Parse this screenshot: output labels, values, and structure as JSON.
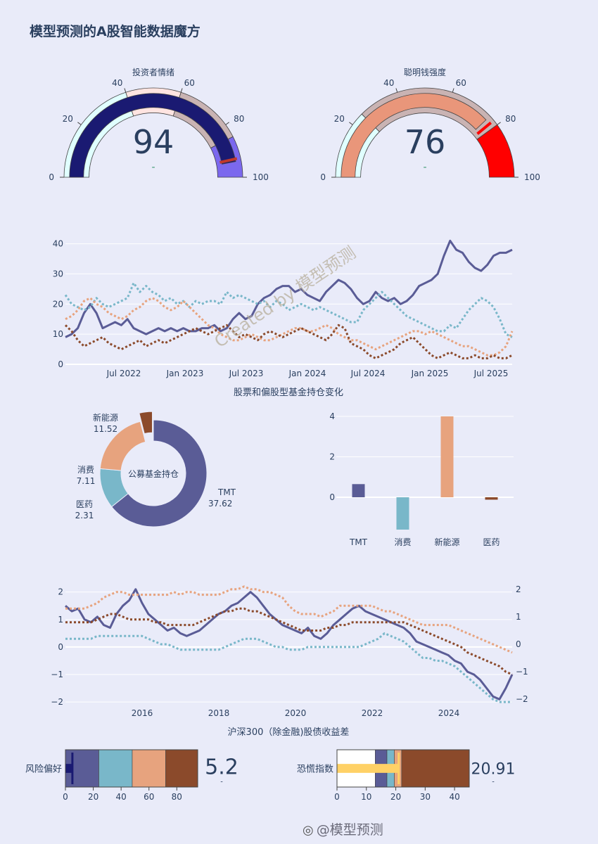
{
  "page": {
    "title": "模型预测的A股智能数据魔方",
    "watermark_handle": "@模型预测",
    "overlay_text": "Created by 模型预测"
  },
  "colors": {
    "navy": "#1a1a72",
    "purple": "#7b68ee",
    "pink": "#ffe4e1",
    "rosybrown": "#c9b3b3",
    "salmon": "#e9967a",
    "lightcyan": "#e0ffff",
    "red": "#ff0000",
    "series_purple": "#5a5c96",
    "series_cyan": "#79b7c9",
    "series_salmon": "#e7a37e",
    "series_brown": "#8b4a2b",
    "gold": "#ffd166"
  },
  "chart_data": [
    {
      "type": "gauge",
      "title": "投资者情绪",
      "value": 94,
      "delta_text": "-",
      "range": [
        0,
        100
      ],
      "ticks": [
        "0",
        "20",
        "40",
        "60",
        "80",
        "100"
      ],
      "steps": [
        {
          "from": 0,
          "to": 40,
          "color": "#e0ffff"
        },
        {
          "from": 40,
          "to": 60,
          "color": "#ffe4e1"
        },
        {
          "from": 60,
          "to": 85,
          "color": "#c9b3b3"
        },
        {
          "from": 85,
          "to": 100,
          "color": "#7b68ee"
        }
      ],
      "bar_color": "#1a1a72",
      "threshold": 93,
      "threshold_color": "#c0392b"
    },
    {
      "type": "gauge",
      "title": "聪明钱强度",
      "value": 76,
      "delta_text": "-",
      "range": [
        0,
        100
      ],
      "ticks": [
        "0",
        "20",
        "40",
        "60",
        "80",
        "100"
      ],
      "steps": [
        {
          "from": 0,
          "to": 25,
          "color": "#e0ffff"
        },
        {
          "from": 25,
          "to": 80,
          "color": "#c9b3b3"
        },
        {
          "from": 80,
          "to": 100,
          "color": "#ff0000"
        }
      ],
      "bar_color": "#e9967a",
      "threshold": 78,
      "threshold_color": "#ff0000"
    },
    {
      "type": "line",
      "title": "股票和偏股型基金持仓变化",
      "x_tick_labels": [
        "Jul 2022",
        "Jan 2023",
        "Jul 2023",
        "Jan 2024",
        "Jul 2024",
        "Jan 2025",
        "Jul 2025"
      ],
      "ylim": [
        0,
        42
      ],
      "y_ticks": [
        0,
        10,
        20,
        30,
        40
      ],
      "series": [
        {
          "style": "solid",
          "color": "#5a5c96",
          "values": [
            9,
            10,
            12,
            17,
            20,
            17,
            12,
            13,
            14,
            13,
            15,
            12,
            11,
            10,
            11,
            12,
            11,
            12,
            11,
            12,
            11,
            11,
            12,
            12,
            13,
            11,
            12,
            15,
            17,
            15,
            16,
            20,
            22,
            23,
            25,
            26,
            26,
            24,
            25,
            23,
            22,
            21,
            24,
            26,
            28,
            27,
            25,
            22,
            20,
            21,
            24,
            22,
            21,
            22,
            20,
            21,
            23,
            26,
            27,
            28,
            30,
            36,
            41,
            38,
            37,
            34,
            32,
            31,
            33,
            36,
            37,
            37,
            38
          ]
        },
        {
          "style": "dot",
          "color": "#79b7c9",
          "values": [
            23,
            20,
            19,
            18,
            19,
            22,
            20,
            19,
            20,
            21,
            22,
            27,
            24,
            26,
            24,
            23,
            21,
            22,
            20,
            21,
            19,
            21,
            20,
            21,
            21,
            20,
            24,
            22,
            23,
            22,
            21,
            20,
            21,
            19,
            21,
            20,
            18,
            19,
            20,
            19,
            18,
            19,
            18,
            17,
            16,
            15,
            14,
            14,
            18,
            20,
            22,
            24,
            22,
            20,
            18,
            16,
            15,
            14,
            13,
            12,
            11,
            11,
            13,
            12,
            15,
            18,
            20,
            22,
            21,
            19,
            15,
            10,
            9
          ]
        },
        {
          "style": "dot",
          "color": "#e7a37e",
          "values": [
            15,
            16,
            18,
            21,
            22,
            20,
            19,
            17,
            16,
            15,
            16,
            18,
            19,
            21,
            22,
            21,
            19,
            18,
            19,
            21,
            19,
            17,
            15,
            13,
            12,
            10,
            9,
            8,
            8,
            9,
            10,
            9,
            8,
            8,
            9,
            10,
            11,
            12,
            12,
            11,
            11,
            12,
            13,
            12,
            10,
            9,
            8,
            8,
            7,
            6,
            5,
            6,
            7,
            8,
            9,
            10,
            11,
            11,
            10,
            11,
            10,
            9,
            8,
            7,
            6,
            6,
            5,
            4,
            3,
            3,
            4,
            6,
            11
          ]
        },
        {
          "style": "dot",
          "color": "#8b4a2b",
          "values": [
            13,
            11,
            8,
            6,
            7,
            8,
            9,
            7,
            6,
            5,
            6,
            7,
            8,
            6,
            7,
            8,
            7,
            8,
            9,
            10,
            11,
            12,
            11,
            10,
            11,
            12,
            13,
            11,
            9,
            10,
            9,
            8,
            10,
            11,
            10,
            9,
            10,
            11,
            12,
            11,
            10,
            9,
            8,
            10,
            13,
            12,
            7,
            6,
            5,
            3,
            2,
            3,
            4,
            5,
            7,
            8,
            9,
            7,
            5,
            3,
            2,
            3,
            4,
            3,
            2,
            2,
            3,
            2,
            2,
            3,
            2,
            2,
            3
          ]
        }
      ]
    },
    {
      "type": "pie",
      "hole_label": "公募基金持仓",
      "labels": [
        "TMT",
        "消费",
        "新能源",
        "医药"
      ],
      "values": [
        37.62,
        7.11,
        11.52,
        2.31
      ],
      "value_texts": [
        "37.62",
        "7.11",
        "11.52",
        "2.31"
      ],
      "colors": [
        "#5a5c96",
        "#79b7c9",
        "#e7a37e",
        "#8b4a2b"
      ]
    },
    {
      "type": "bar",
      "categories": [
        "TMT",
        "消费",
        "新能源",
        "医药"
      ],
      "values": [
        0.65,
        -1.6,
        4.0,
        -0.12
      ],
      "ylim": [
        -1.6,
        4.2
      ],
      "y_ticks": [
        0,
        2,
        4
      ],
      "colors": [
        "#5a5c96",
        "#79b7c9",
        "#e7a37e",
        "#8b4a2b"
      ]
    },
    {
      "type": "line",
      "title": "沪深300（除金融)股债收益差",
      "x_tick_labels": [
        "2016",
        "2018",
        "2020",
        "2022",
        "2024"
      ],
      "ylim": [
        -2.1,
        2.3
      ],
      "y_ticks_left": [
        "2",
        "1",
        "0",
        "−1",
        "−2"
      ],
      "y_ticks_right": [
        "2",
        "1",
        "0",
        "−1",
        "−2"
      ],
      "series": [
        {
          "style": "solid",
          "color": "#5a5c96",
          "values": [
            1.5,
            1.3,
            1.4,
            1.0,
            0.9,
            1.1,
            0.8,
            0.7,
            1.2,
            1.5,
            1.7,
            2.1,
            1.6,
            1.2,
            1.0,
            0.8,
            0.6,
            0.7,
            0.5,
            0.4,
            0.5,
            0.6,
            0.8,
            1.0,
            1.2,
            1.3,
            1.5,
            1.6,
            1.8,
            2.0,
            1.8,
            1.5,
            1.2,
            1.0,
            0.8,
            0.7,
            0.6,
            0.5,
            0.7,
            0.4,
            0.3,
            0.5,
            0.8,
            1.0,
            1.2,
            1.4,
            1.5,
            1.3,
            1.2,
            1.1,
            1.0,
            0.9,
            0.8,
            0.7,
            0.5,
            0.2,
            0.1,
            0.0,
            -0.1,
            -0.2,
            -0.3,
            -0.5,
            -0.6,
            -0.9,
            -1.0,
            -1.2,
            -1.5,
            -1.8,
            -1.9,
            -1.5,
            -1.0
          ]
        },
        {
          "style": "dot",
          "color": "#e7a37e",
          "values": [
            1.4,
            1.4,
            1.4,
            1.4,
            1.5,
            1.6,
            1.8,
            1.9,
            2.0,
            2.0,
            1.9,
            1.9,
            1.9,
            1.9,
            1.9,
            1.9,
            1.9,
            2.0,
            1.9,
            2.0,
            2.0,
            1.9,
            1.9,
            1.9,
            1.9,
            2.0,
            2.1,
            2.1,
            2.2,
            2.1,
            2.1,
            2.0,
            2.0,
            1.9,
            1.8,
            1.5,
            1.3,
            1.2,
            1.2,
            1.2,
            1.1,
            1.2,
            1.3,
            1.5,
            1.5,
            1.5,
            1.5,
            1.5,
            1.5,
            1.4,
            1.3,
            1.3,
            1.2,
            1.1,
            1.0,
            0.9,
            0.8,
            0.8,
            0.8,
            0.8,
            0.8,
            0.7,
            0.6,
            0.5,
            0.4,
            0.3,
            0.2,
            0.1,
            0.0,
            -0.1,
            -0.2
          ]
        },
        {
          "style": "dot",
          "color": "#8b4a2b",
          "values": [
            0.9,
            0.9,
            0.9,
            0.9,
            0.9,
            1.0,
            1.1,
            1.2,
            1.2,
            1.1,
            1.0,
            1.0,
            1.0,
            1.0,
            0.9,
            0.9,
            0.8,
            0.8,
            0.8,
            0.8,
            0.8,
            0.9,
            1.0,
            1.1,
            1.2,
            1.3,
            1.3,
            1.4,
            1.4,
            1.3,
            1.3,
            1.2,
            1.1,
            1.0,
            0.9,
            0.8,
            0.7,
            0.6,
            0.6,
            0.6,
            0.6,
            0.7,
            0.7,
            0.8,
            0.8,
            0.9,
            0.9,
            0.9,
            0.9,
            0.9,
            0.9,
            0.9,
            0.9,
            0.9,
            0.8,
            0.7,
            0.6,
            0.5,
            0.4,
            0.3,
            0.2,
            0.1,
            0.0,
            -0.2,
            -0.3,
            -0.4,
            -0.5,
            -0.6,
            -0.7,
            -0.9,
            -1.0
          ]
        },
        {
          "style": "dot",
          "color": "#79b7c9",
          "values": [
            0.3,
            0.3,
            0.3,
            0.3,
            0.3,
            0.4,
            0.4,
            0.4,
            0.4,
            0.4,
            0.4,
            0.4,
            0.4,
            0.3,
            0.2,
            0.1,
            0.1,
            0.0,
            -0.1,
            -0.1,
            -0.1,
            -0.1,
            -0.1,
            -0.1,
            -0.1,
            0.0,
            0.1,
            0.2,
            0.3,
            0.3,
            0.3,
            0.2,
            0.1,
            0.0,
            0.0,
            -0.1,
            -0.1,
            -0.1,
            0.0,
            0.0,
            0.0,
            0.0,
            0.0,
            0.0,
            0.0,
            0.0,
            0.0,
            0.1,
            0.2,
            0.3,
            0.5,
            0.4,
            0.3,
            0.2,
            0.0,
            -0.2,
            -0.4,
            -0.4,
            -0.5,
            -0.5,
            -0.6,
            -0.7,
            -0.9,
            -1.1,
            -1.3,
            -1.5,
            -1.7,
            -1.9,
            -2.0,
            -2.0,
            -2.0
          ]
        }
      ]
    },
    {
      "type": "bullet",
      "label": "风险偏好",
      "value_text": "5.2",
      "value": 5.2,
      "range": [
        0,
        95
      ],
      "ticks": [
        0,
        20,
        40,
        60,
        80
      ],
      "steps": [
        {
          "from": 0,
          "to": 24,
          "color": "#5a5c96"
        },
        {
          "from": 24,
          "to": 48,
          "color": "#79b7c9"
        },
        {
          "from": 48,
          "to": 72,
          "color": "#e7a37e"
        },
        {
          "from": 72,
          "to": 95,
          "color": "#8b4a2b"
        }
      ],
      "bar_color": "#1a1a72",
      "threshold": 5
    },
    {
      "type": "bullet",
      "label": "恐慌指数",
      "value_text": "20.91",
      "value": 20.91,
      "range": [
        0,
        45
      ],
      "ticks": [
        0,
        10,
        20,
        30,
        40
      ],
      "steps": [
        {
          "from": 0,
          "to": 13,
          "color": "#ffffff"
        },
        {
          "from": 13,
          "to": 17,
          "color": "#5a5c96"
        },
        {
          "from": 17,
          "to": 19.5,
          "color": "#79b7c9"
        },
        {
          "from": 19.5,
          "to": 22,
          "color": "#e7a37e"
        },
        {
          "from": 22,
          "to": 45,
          "color": "#8b4a2b"
        }
      ],
      "bar_color": "#ffd166",
      "threshold": 21
    }
  ]
}
